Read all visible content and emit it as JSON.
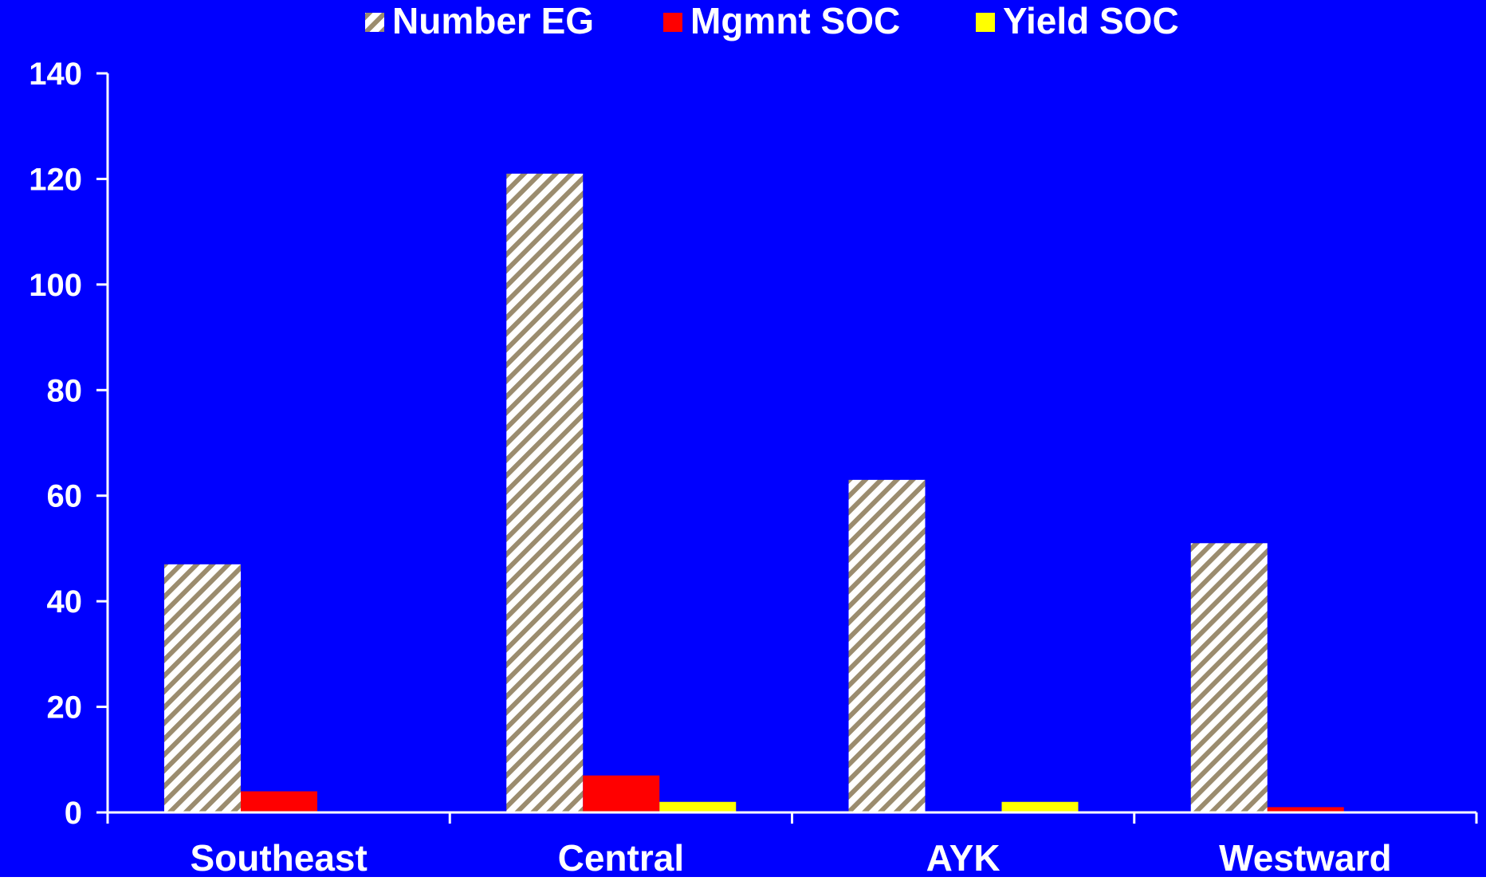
{
  "colors": {
    "background": "#0000FF",
    "axis": "#FFFFFF",
    "text": "#FFFFFF",
    "hatch_light": "#FFFFFF",
    "hatch_dark": "#9B8C6E",
    "mgmnt": "#FF0000",
    "yield": "#FFFF00"
  },
  "chart_data": {
    "type": "bar",
    "title": "",
    "xlabel": "",
    "ylabel": "",
    "categories": [
      "Southeast",
      "Central",
      "AYK",
      "Westward"
    ],
    "series": [
      {
        "name": "Number EG",
        "values": [
          47,
          121,
          63,
          51
        ],
        "color": "#9B8C6E",
        "pattern": "diagonal-hatch"
      },
      {
        "name": "Mgmnt SOC",
        "values": [
          4,
          7,
          0,
          1
        ],
        "color": "#FF0000"
      },
      {
        "name": "Yield SOC",
        "values": [
          0,
          2,
          2,
          0
        ],
        "color": "#FFFF00"
      }
    ],
    "ylim": [
      0,
      140
    ],
    "yticks": [
      0,
      20,
      40,
      60,
      80,
      100,
      120,
      140
    ],
    "grid": false,
    "legend": "top"
  }
}
